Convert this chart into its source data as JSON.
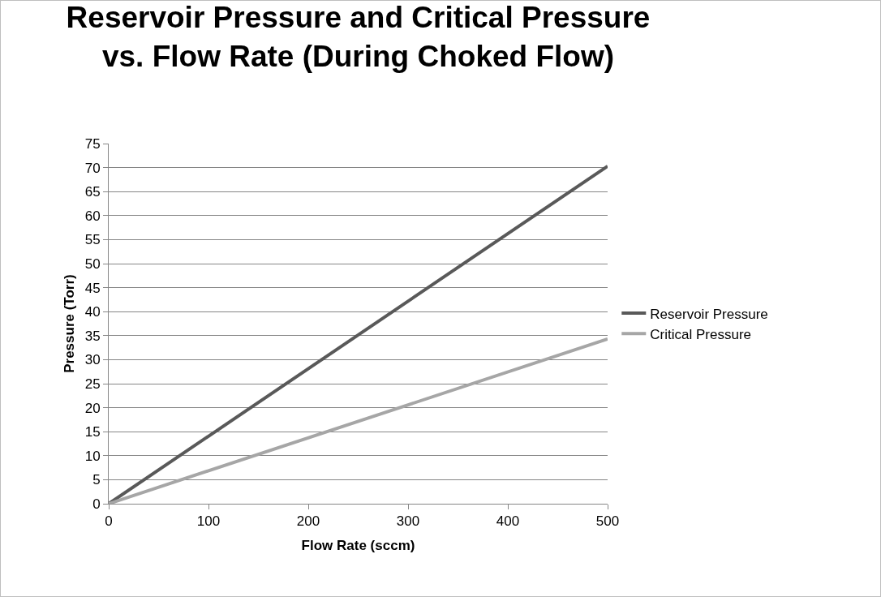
{
  "chart_data": {
    "type": "line",
    "title": "Reservoir Pressure and Critical Pressure\nvs. Flow Rate (During Choked Flow)",
    "xlabel": "Flow Rate (sccm)",
    "ylabel": "Pressure (Torr)",
    "x": [
      0,
      500
    ],
    "series": [
      {
        "name": "Reservoir Pressure",
        "color": "#595959",
        "values": [
          0,
          70.3
        ]
      },
      {
        "name": "Critical Pressure",
        "color": "#a6a6a6",
        "values": [
          0,
          34.3
        ]
      }
    ],
    "xlim": [
      0,
      500
    ],
    "xticks": [
      0,
      100,
      200,
      300,
      400,
      500
    ],
    "ylim": [
      0,
      75
    ],
    "yticks": [
      0,
      5,
      10,
      15,
      20,
      25,
      30,
      35,
      40,
      45,
      50,
      55,
      60,
      65,
      70,
      75
    ],
    "grid": "y",
    "legend": "right",
    "marker": "none",
    "line_style": "solid"
  }
}
